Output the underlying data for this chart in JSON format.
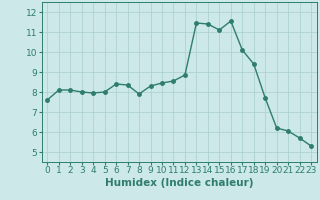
{
  "x": [
    0,
    1,
    2,
    3,
    4,
    5,
    6,
    7,
    8,
    9,
    10,
    11,
    12,
    13,
    14,
    15,
    16,
    17,
    18,
    19,
    20,
    21,
    22,
    23
  ],
  "y": [
    7.6,
    8.1,
    8.1,
    8.0,
    7.95,
    8.0,
    8.4,
    8.35,
    7.9,
    8.3,
    8.45,
    8.55,
    8.85,
    11.45,
    11.4,
    11.1,
    11.55,
    10.1,
    9.4,
    7.7,
    6.2,
    6.05,
    5.7,
    5.3
  ],
  "line_color": "#2e7d6e",
  "marker": "o",
  "marker_size": 2.5,
  "line_width": 1.0,
  "bg_color": "#cce8e8",
  "grid_color": "#aacece",
  "xlabel": "Humidex (Indice chaleur)",
  "xlim": [
    -0.5,
    23.5
  ],
  "ylim": [
    4.5,
    12.5
  ],
  "xticks": [
    0,
    1,
    2,
    3,
    4,
    5,
    6,
    7,
    8,
    9,
    10,
    11,
    12,
    13,
    14,
    15,
    16,
    17,
    18,
    19,
    20,
    21,
    22,
    23
  ],
  "yticks": [
    5,
    6,
    7,
    8,
    9,
    10,
    11,
    12
  ],
  "tick_fontsize": 6.5,
  "xlabel_fontsize": 7.5
}
